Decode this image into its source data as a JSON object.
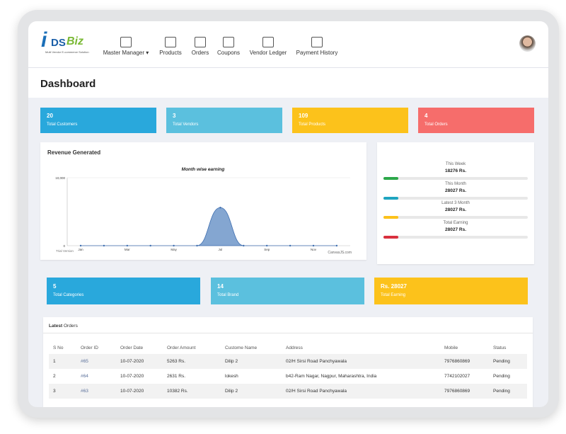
{
  "logo": {
    "mark": "i",
    "text": "DS",
    "accent": "Biz",
    "tagline": "Multi Vendor E-commerce Solution"
  },
  "nav": [
    "Master Manager",
    "Products",
    "Orders",
    "Coupons",
    "Vendor Ledger",
    "Payment History"
  ],
  "page_title": "Dashboard",
  "stats": [
    {
      "value": "20",
      "label": "Total Customers",
      "color": "#29a8dc"
    },
    {
      "value": "3",
      "label": "Total Vendors",
      "color": "#5bc0de"
    },
    {
      "value": "109",
      "label": "Total Products",
      "color": "#fcc21b"
    },
    {
      "value": "4",
      "label": "Total Orders",
      "color": "#f66d6b"
    }
  ],
  "revenue_title": "Revenue Generated",
  "chart_data": {
    "type": "area",
    "title": "Month wise earning",
    "categories": [
      "Jan",
      null,
      "Mar",
      null,
      "May",
      null,
      "Jul",
      null,
      "Sep",
      null,
      "Nov",
      null
    ],
    "values": [
      0,
      0,
      0,
      0,
      0,
      0,
      5600,
      0,
      0,
      0,
      0,
      0
    ],
    "color": "#6f96c9",
    "ylim": [
      0,
      10000
    ],
    "yticks": [
      0,
      {
        "value": 10000,
        "label": "10,000"
      }
    ],
    "watermark": "Trial Version",
    "credit": "CanvasJS.com"
  },
  "earnings": [
    {
      "label": "This Week",
      "value": "18276 Rs.",
      "color": "#2ca84a"
    },
    {
      "label": "This Month",
      "value": "28027 Rs.",
      "color": "#1fa5c0"
    },
    {
      "label": "Latest 3 Month",
      "value": "28027 Rs.",
      "color": "#fcc21b"
    },
    {
      "label": "Total Earning",
      "value": "28027 Rs.",
      "color": "#d9303e"
    }
  ],
  "stats2": [
    {
      "value": "5",
      "label": "Total Categories",
      "color": "#29a8dc"
    },
    {
      "value": "14",
      "label": "Total Brand",
      "color": "#5bc0de"
    },
    {
      "value": "Rs. 28027",
      "label": "Total Earning",
      "color": "#fcc21b"
    }
  ],
  "table": {
    "title_bold": "Latest",
    "title_rest": "Orders",
    "columns": [
      "S No",
      "Order ID",
      "Order Date",
      "Order Amount",
      "Custome Name",
      "Address",
      "Mobile",
      "Status"
    ],
    "rows": [
      [
        "1",
        "#65",
        "10-07-2020",
        "5263 Rs.",
        "Dilip 2",
        "02/H Sirsi Road Panchyawala",
        "7976860869",
        "Pending"
      ],
      [
        "2",
        "#64",
        "10-07-2020",
        "2631 Rs.",
        "lokesh",
        "b42-Ram Nagar, Nagpur, Maharashtra, India",
        "7742102027",
        "Pending"
      ],
      [
        "3",
        "#63",
        "10-07-2020",
        "10382 Rs.",
        "Dilip 2",
        "02/H Sirsi Road Panchyawala",
        "7976860869",
        "Pending"
      ]
    ]
  }
}
